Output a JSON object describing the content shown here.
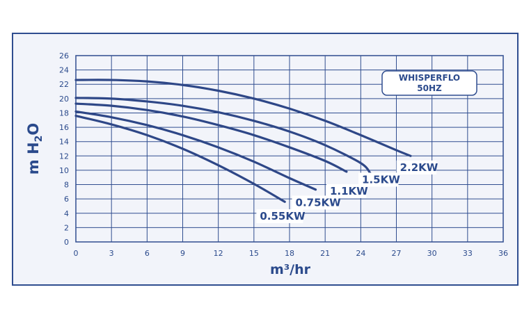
{
  "chart_data": {
    "type": "line",
    "xlabel": "m³/hr",
    "ylabel_main": "m H",
    "ylabel_sub": "2",
    "ylabel_tail": "O",
    "xlim": [
      0,
      36
    ],
    "ylim": [
      0,
      26
    ],
    "x_ticks": [
      "0",
      "3",
      "6",
      "9",
      "12",
      "15",
      "18",
      "21",
      "24",
      "27",
      "30",
      "33",
      "36"
    ],
    "y_ticks": [
      "0",
      "2",
      "4",
      "6",
      "8",
      "10",
      "12",
      "14",
      "16",
      "18",
      "20",
      "22",
      "24",
      "26"
    ],
    "grid": true,
    "legend_box": {
      "line1": "WHISPERFLO",
      "line2": "50HZ"
    },
    "series": [
      {
        "name": "0.55KW",
        "points": [
          [
            0,
            17.6
          ],
          [
            3,
            16.4
          ],
          [
            6,
            14.9
          ],
          [
            9,
            13.0
          ],
          [
            12,
            10.7
          ],
          [
            15,
            8.1
          ],
          [
            17.6,
            5.6
          ]
        ]
      },
      {
        "name": "0.75KW",
        "points": [
          [
            0,
            18.2
          ],
          [
            3,
            17.4
          ],
          [
            6,
            16.3
          ],
          [
            9,
            14.9
          ],
          [
            12,
            13.2
          ],
          [
            15,
            11.2
          ],
          [
            18,
            8.9
          ],
          [
            20.2,
            7.3
          ]
        ]
      },
      {
        "name": "1.1KW",
        "points": [
          [
            0,
            19.3
          ],
          [
            3,
            19.0
          ],
          [
            6,
            18.4
          ],
          [
            9,
            17.5
          ],
          [
            12,
            16.3
          ],
          [
            15,
            14.9
          ],
          [
            18,
            13.2
          ],
          [
            21,
            11.3
          ],
          [
            22.8,
            9.8
          ]
        ]
      },
      {
        "name": "1.5KW",
        "points": [
          [
            0,
            20.1
          ],
          [
            3,
            20.0
          ],
          [
            6,
            19.6
          ],
          [
            9,
            19.0
          ],
          [
            12,
            18.1
          ],
          [
            15,
            16.9
          ],
          [
            18,
            15.4
          ],
          [
            21,
            13.5
          ],
          [
            24,
            11.0
          ],
          [
            24.8,
            9.6
          ]
        ]
      },
      {
        "name": "2.2KW",
        "points": [
          [
            0,
            22.6
          ],
          [
            3,
            22.6
          ],
          [
            6,
            22.4
          ],
          [
            9,
            21.9
          ],
          [
            12,
            21.1
          ],
          [
            15,
            20.0
          ],
          [
            18,
            18.6
          ],
          [
            21,
            16.9
          ],
          [
            24,
            14.9
          ],
          [
            27,
            12.8
          ],
          [
            28.2,
            12.0
          ]
        ]
      }
    ],
    "labels": [
      {
        "text": "0.55KW",
        "x": 15.5,
        "y": 3.2
      },
      {
        "text": "0.75KW",
        "x": 18.5,
        "y": 5.1
      },
      {
        "text": "1.1KW",
        "x": 21.4,
        "y": 6.7
      },
      {
        "text": "1.5KW",
        "x": 24.1,
        "y": 8.3
      },
      {
        "text": "2.2KW",
        "x": 27.3,
        "y": 10.0
      }
    ]
  }
}
